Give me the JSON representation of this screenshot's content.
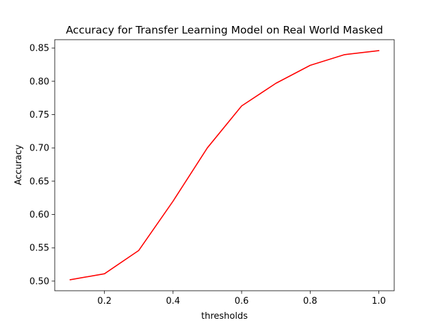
{
  "chart_data": {
    "type": "line",
    "title": "Accuracy for Transfer Learning Model on Real World Masked",
    "xlabel": "thresholds",
    "ylabel": "Accuracy",
    "xlim": [
      0.055,
      1.045
    ],
    "ylim": [
      0.4855,
      0.8625
    ],
    "x_ticks": [
      0.2,
      0.4,
      0.6,
      0.8,
      1.0
    ],
    "x_tick_labels": [
      "0.2",
      "0.4",
      "0.6",
      "0.8",
      "1.0"
    ],
    "y_ticks": [
      0.5,
      0.55,
      0.6,
      0.65,
      0.7,
      0.75,
      0.8,
      0.85
    ],
    "y_tick_labels": [
      "0.50",
      "0.55",
      "0.60",
      "0.65",
      "0.70",
      "0.75",
      "0.80",
      "0.85"
    ],
    "grid": false,
    "series": [
      {
        "color": "#ff0000",
        "x": [
          0.1,
          0.2,
          0.3,
          0.4,
          0.5,
          0.6,
          0.7,
          0.8,
          0.9,
          1.0
        ],
        "y": [
          0.502,
          0.511,
          0.546,
          0.62,
          0.7,
          0.763,
          0.797,
          0.824,
          0.84,
          0.846
        ]
      }
    ]
  }
}
